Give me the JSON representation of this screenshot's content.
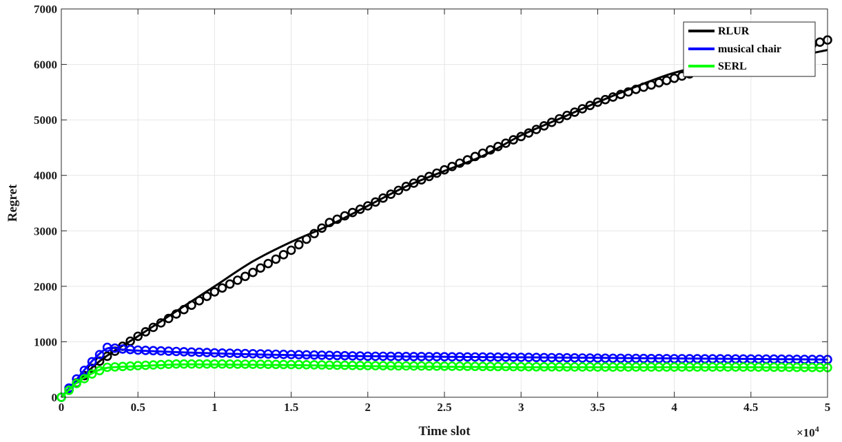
{
  "chart_data": {
    "type": "line",
    "xlabel": "Time slot",
    "ylabel": "Regret",
    "x_multiplier_label": "×10",
    "x_multiplier_exp": "4",
    "xlim": [
      0,
      5
    ],
    "ylim": [
      0,
      7000
    ],
    "xticks": [
      0,
      0.5,
      1,
      1.5,
      2,
      2.5,
      3,
      3.5,
      4,
      4.5,
      5
    ],
    "xtick_labels": [
      "0",
      "0.5",
      "1",
      "1.5",
      "2",
      "2.5",
      "3",
      "3.5",
      "4",
      "4.5",
      "5"
    ],
    "yticks": [
      0,
      1000,
      2000,
      3000,
      4000,
      5000,
      6000,
      7000
    ],
    "ytick_labels": [
      "0",
      "1000",
      "2000",
      "3000",
      "4000",
      "5000",
      "6000",
      "7000"
    ],
    "grid": true,
    "legend_position": "top-right",
    "series": [
      {
        "name": "RLUR",
        "color": "#000000",
        "line": {
          "x": [
            0,
            0.25,
            0.5,
            0.75,
            1.0,
            1.25,
            1.5,
            1.75,
            2.0,
            2.25,
            2.5,
            2.75,
            3.0,
            3.25,
            3.5,
            3.75,
            4.0,
            4.25,
            4.5,
            4.75,
            5.0
          ],
          "y": [
            0,
            650,
            1100,
            1550,
            2000,
            2450,
            2800,
            3100,
            3450,
            3800,
            4080,
            4350,
            4720,
            5020,
            5320,
            5600,
            5850,
            6000,
            6080,
            6130,
            6260
          ]
        },
        "markers": {
          "x": [
            0,
            0.25,
            0.5,
            0.75,
            1.0,
            1.25,
            1.5,
            1.75,
            2.0,
            2.25,
            2.5,
            2.75,
            3.0,
            3.25,
            3.5,
            3.75,
            4.0,
            4.25,
            4.5,
            4.75,
            5.0
          ],
          "y": [
            0,
            650,
            1100,
            1500,
            1900,
            2250,
            2650,
            3150,
            3450,
            3800,
            4100,
            4400,
            4700,
            5020,
            5320,
            5550,
            5750,
            5950,
            6100,
            6250,
            6440
          ]
        }
      },
      {
        "name": "musical chair",
        "color": "#0000ff",
        "line": {
          "x": [
            0,
            0.1,
            0.2,
            0.3,
            0.4,
            0.5,
            1.0,
            1.5,
            2.0,
            2.5,
            3.0,
            3.5,
            4.0,
            4.5,
            5.0
          ],
          "y": [
            0,
            320,
            650,
            880,
            860,
            840,
            790,
            760,
            740,
            730,
            720,
            710,
            700,
            690,
            680
          ]
        },
        "markers": {
          "x": [
            0,
            0.1,
            0.2,
            0.3,
            0.4,
            0.5,
            1.0,
            1.5,
            2.0,
            2.5,
            3.0,
            3.5,
            4.0,
            4.5,
            5.0
          ],
          "y": [
            0,
            330,
            640,
            900,
            870,
            850,
            800,
            770,
            740,
            730,
            720,
            705,
            695,
            690,
            680
          ]
        }
      },
      {
        "name": "SERL",
        "color": "#00ff00",
        "line": {
          "x": [
            0,
            0.1,
            0.2,
            0.3,
            0.5,
            0.75,
            1.0,
            1.5,
            2.0,
            2.5,
            3.0,
            3.5,
            4.0,
            4.5,
            5.0
          ],
          "y": [
            0,
            260,
            430,
            530,
            560,
            590,
            590,
            580,
            560,
            550,
            540,
            540,
            540,
            540,
            530
          ]
        },
        "markers": {
          "x": [
            0,
            0.1,
            0.2,
            0.3,
            0.5,
            0.75,
            1.0,
            1.5,
            2.0,
            2.5,
            3.0,
            3.5,
            4.0,
            4.5,
            5.0
          ],
          "y": [
            0,
            250,
            420,
            540,
            570,
            600,
            600,
            590,
            570,
            560,
            550,
            545,
            545,
            545,
            535
          ]
        }
      }
    ]
  }
}
